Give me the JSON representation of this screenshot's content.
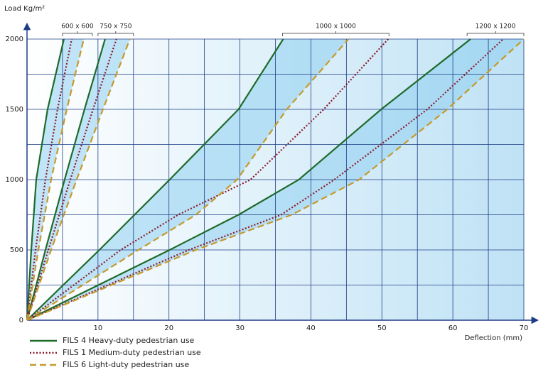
{
  "chart_data": {
    "type": "line",
    "y_label": "Load Kg/m²",
    "x_label": "Deflection (mm)",
    "xlim": [
      0,
      70
    ],
    "ylim": [
      0,
      2000
    ],
    "xticks": [
      10,
      20,
      30,
      40,
      50,
      60,
      70
    ],
    "yticks": [
      0,
      500,
      1000,
      1500,
      2000
    ],
    "xgrid": [
      5,
      10,
      15,
      20,
      25,
      30,
      35,
      40,
      45,
      50,
      55,
      60,
      65,
      70
    ],
    "ygrid": [
      250,
      500,
      750,
      1000,
      1250,
      1500,
      1750,
      2000
    ],
    "groups": [
      {
        "label": "600 x 600",
        "span": [
          5,
          9.2
        ]
      },
      {
        "label": "750 x 750",
        "span": [
          10,
          15
        ]
      },
      {
        "label": "1000 x 1000",
        "span": [
          36,
          51
        ]
      },
      {
        "label": "1200 x 1200",
        "span": [
          62,
          70
        ]
      }
    ],
    "series": [
      {
        "name": "FILS 4 Heavy-duty pedestrian use",
        "color": "#1e6b2a",
        "dash": "solid",
        "lines": [
          {
            "x": [
              0,
              0.6,
              1.3,
              2.9,
              5.2
            ],
            "values": [
              0,
              500,
              1000,
              1500,
              2000
            ]
          },
          {
            "x": [
              0,
              2.6,
              5.3,
              8.1,
              11.0
            ],
            "values": [
              0,
              500,
              1000,
              1500,
              2000
            ]
          },
          {
            "x": [
              0,
              10.2,
              20.1,
              29.8,
              36.1
            ],
            "values": [
              0,
              500,
              1000,
              1500,
              2000
            ]
          },
          {
            "x": [
              0,
              20.1,
              29.8,
              38.3,
              49.9,
              62.5
            ],
            "values": [
              0,
              500,
              750,
              1000,
              1500,
              2000
            ]
          }
        ]
      },
      {
        "name": "FILS 1 Medium-duty pedestrian use",
        "color": "#8b1a2b",
        "dash": "dotted",
        "lines": [
          {
            "x": [
              0,
              1.2,
              2.6,
              4.3,
              6.3
            ],
            "values": [
              0,
              500,
              1000,
              1500,
              2000
            ]
          },
          {
            "x": [
              0,
              3.0,
              6.1,
              9.3,
              12.6
            ],
            "values": [
              0,
              500,
              1000,
              1500,
              2000
            ]
          },
          {
            "x": [
              0,
              13.2,
              21.3,
              31.5,
              41.8,
              50.9
            ],
            "values": [
              0,
              500,
              750,
              1000,
              1500,
              2000
            ]
          },
          {
            "x": [
              0,
              22.8,
              35.8,
              43.3,
              56.4,
              67.1
            ],
            "values": [
              0,
              500,
              750,
              1000,
              1500,
              2000
            ]
          }
        ]
      },
      {
        "name": "FILS 6 Light-duty pedestrian use",
        "color": "#c49a2c",
        "dash": "dashed",
        "lines": [
          {
            "x": [
              0,
              1.6,
              3.4,
              5.6,
              8.0
            ],
            "values": [
              0,
              500,
              1000,
              1500,
              2000
            ]
          },
          {
            "x": [
              0,
              3.4,
              7.0,
              10.7,
              14.5
            ],
            "values": [
              0,
              500,
              1000,
              1500,
              2000
            ]
          },
          {
            "x": [
              0,
              15.7,
              23.8,
              29.6,
              36.6,
              45.3
            ],
            "values": [
              0,
              500,
              750,
              1000,
              1500,
              2000
            ]
          },
          {
            "x": [
              0,
              23.8,
              37.3,
              46.8,
              59.2,
              70.0
            ],
            "values": [
              0,
              500,
              750,
              1000,
              1500,
              2000
            ]
          }
        ]
      }
    ]
  }
}
